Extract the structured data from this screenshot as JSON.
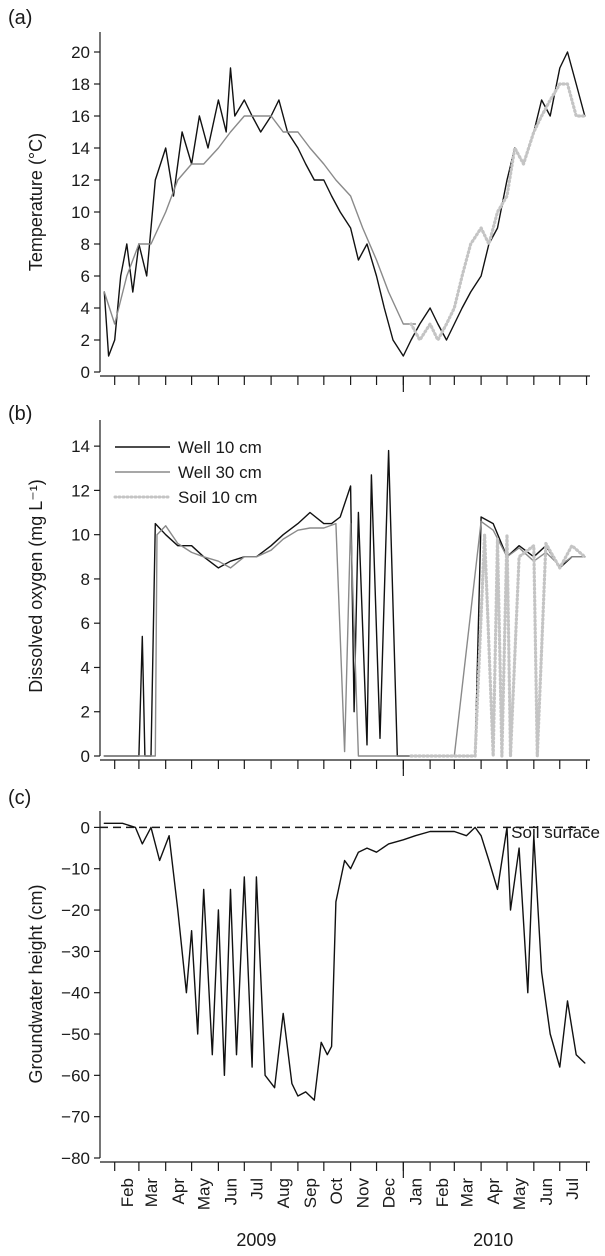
{
  "colors": {
    "well10": "#111111",
    "well30": "#8a8a8a",
    "soil10": "#c4c4c4",
    "axis": "#1a1a1a"
  },
  "chart_data": [
    {
      "type": "line",
      "panel": "(a)",
      "ylabel": "Temperature (°C)",
      "ylim": [
        0,
        21
      ],
      "yticks": [
        0,
        2,
        4,
        6,
        8,
        10,
        12,
        14,
        16,
        18,
        20
      ],
      "series": [
        {
          "name": "Well 10 cm",
          "style": "solid-black",
          "x": [
            "2009-01-20",
            "2009-01-25",
            "2009-02-01",
            "2009-02-08",
            "2009-02-15",
            "2009-02-22",
            "2009-03-01",
            "2009-03-10",
            "2009-03-20",
            "2009-04-01",
            "2009-04-10",
            "2009-04-20",
            "2009-05-01",
            "2009-05-10",
            "2009-05-20",
            "2009-06-01",
            "2009-06-10",
            "2009-06-15",
            "2009-06-20",
            "2009-07-01",
            "2009-07-10",
            "2009-07-20",
            "2009-08-01",
            "2009-08-10",
            "2009-08-20",
            "2009-09-01",
            "2009-09-10",
            "2009-09-20",
            "2009-10-01",
            "2009-10-10",
            "2009-10-20",
            "2009-11-01",
            "2009-11-10",
            "2009-11-20",
            "2009-12-01",
            "2009-12-10",
            "2009-12-20",
            "2010-01-01",
            "2010-01-10",
            "2010-01-20",
            "2010-02-01",
            "2010-02-10",
            "2010-02-20",
            "2010-03-01",
            "2010-03-10",
            "2010-03-20",
            "2010-04-01",
            "2010-04-10",
            "2010-04-20",
            "2010-05-01",
            "2010-05-10",
            "2010-05-20",
            "2010-06-01",
            "2010-06-10",
            "2010-06-20",
            "2010-07-01",
            "2010-07-10",
            "2010-07-20",
            "2010-07-30"
          ],
          "y": [
            5,
            1,
            2,
            6,
            8,
            5,
            8,
            6,
            12,
            14,
            11,
            15,
            13,
            16,
            14,
            17,
            15,
            19,
            16,
            17,
            16,
            15,
            16,
            17,
            15,
            14,
            13,
            12,
            12,
            11,
            10,
            9,
            7,
            8,
            6,
            4,
            2,
            1,
            2,
            3,
            4,
            3,
            2,
            3,
            4,
            5,
            6,
            8,
            9,
            12,
            14,
            13,
            15,
            17,
            16,
            19,
            20,
            18,
            16
          ]
        },
        {
          "name": "Well 30 cm",
          "style": "solid-gray",
          "x": [
            "2009-01-20",
            "2009-02-01",
            "2009-02-15",
            "2009-03-01",
            "2009-03-15",
            "2009-04-01",
            "2009-04-15",
            "2009-05-01",
            "2009-05-15",
            "2009-06-01",
            "2009-06-15",
            "2009-07-01",
            "2009-07-15",
            "2009-08-01",
            "2009-08-15",
            "2009-09-01",
            "2009-09-15",
            "2009-10-01",
            "2009-10-15",
            "2009-11-01",
            "2009-11-15",
            "2009-12-01",
            "2009-12-15",
            "2010-01-01",
            "2010-01-15"
          ],
          "y": [
            5,
            3,
            6,
            8,
            8,
            10,
            12,
            13,
            13,
            14,
            15,
            16,
            16,
            16,
            15,
            15,
            14,
            13,
            12,
            11,
            9,
            7,
            5,
            3,
            3
          ]
        },
        {
          "name": "Soil 10 cm",
          "style": "dotted-lightgray",
          "x": [
            "2010-01-10",
            "2010-01-20",
            "2010-02-01",
            "2010-02-10",
            "2010-02-20",
            "2010-03-01",
            "2010-03-10",
            "2010-03-20",
            "2010-04-01",
            "2010-04-10",
            "2010-04-20",
            "2010-05-01",
            "2010-05-10",
            "2010-05-20",
            "2010-06-01",
            "2010-06-10",
            "2010-06-20",
            "2010-07-01",
            "2010-07-10",
            "2010-07-20",
            "2010-07-30"
          ],
          "y": [
            3,
            2,
            3,
            2,
            3,
            4,
            6,
            8,
            9,
            8,
            10,
            11,
            14,
            13,
            15,
            16,
            17,
            18,
            18,
            16,
            16
          ]
        }
      ]
    },
    {
      "type": "line",
      "panel": "(b)",
      "ylabel": "Dissolved oxygen (mg L⁻¹)",
      "ylim": [
        0,
        15
      ],
      "yticks": [
        0,
        2,
        4,
        6,
        8,
        10,
        12,
        14
      ],
      "legend": {
        "position": "top-left",
        "entries": [
          "Well 10 cm",
          "Well 30 cm",
          "Soil 10 cm"
        ]
      },
      "series": [
        {
          "name": "Well 10 cm",
          "style": "solid-black",
          "x": [
            "2009-01-20",
            "2009-03-01",
            "2009-03-05",
            "2009-03-08",
            "2009-03-15",
            "2009-03-20",
            "2009-04-01",
            "2009-04-15",
            "2009-05-01",
            "2009-05-15",
            "2009-06-01",
            "2009-06-15",
            "2009-07-01",
            "2009-07-15",
            "2009-08-01",
            "2009-08-15",
            "2009-09-01",
            "2009-09-15",
            "2009-10-01",
            "2009-10-10",
            "2009-10-20",
            "2009-11-01",
            "2009-11-05",
            "2009-11-10",
            "2009-11-20",
            "2009-11-25",
            "2009-12-05",
            "2009-12-15",
            "2009-12-25",
            "2010-01-01",
            "2010-01-05",
            "2010-01-10",
            "2010-01-15",
            "2010-02-01",
            "2010-03-01",
            "2010-03-15",
            "2010-03-25",
            "2010-04-01",
            "2010-04-15",
            "2010-05-01",
            "2010-05-15",
            "2010-06-01",
            "2010-06-15",
            "2010-07-01",
            "2010-07-15",
            "2010-07-30"
          ],
          "y": [
            0,
            0,
            5.4,
            0,
            0,
            10.5,
            10,
            9.5,
            9.5,
            9,
            8.5,
            8.8,
            9,
            9,
            9.5,
            10,
            10.5,
            11,
            10.5,
            10.5,
            10.8,
            12.2,
            2,
            11,
            0.5,
            12.7,
            0.8,
            13.8,
            0,
            0,
            0,
            0,
            0,
            0,
            0,
            0,
            0,
            10.8,
            10.5,
            9,
            9.5,
            9,
            9.5,
            8.5,
            9,
            9
          ]
        },
        {
          "name": "Well 30 cm",
          "style": "solid-gray",
          "x": [
            "2009-01-20",
            "2009-03-20",
            "2009-03-22",
            "2009-04-01",
            "2009-04-15",
            "2009-05-01",
            "2009-05-15",
            "2009-06-01",
            "2009-06-15",
            "2009-07-01",
            "2009-07-15",
            "2009-08-01",
            "2009-08-15",
            "2009-09-01",
            "2009-09-15",
            "2009-10-01",
            "2009-10-15",
            "2009-10-25",
            "2009-11-01",
            "2009-11-10",
            "2009-12-01",
            "2010-01-01",
            "2010-02-01",
            "2010-03-01",
            "2010-04-01",
            "2010-04-15",
            "2010-05-01",
            "2010-05-15",
            "2010-06-01",
            "2010-06-15",
            "2010-07-01",
            "2010-07-15",
            "2010-07-30"
          ],
          "y": [
            0,
            0,
            10,
            10.4,
            9.6,
            9.2,
            9,
            8.8,
            8.5,
            9,
            9,
            9.3,
            9.8,
            10.2,
            10.3,
            10.3,
            10.5,
            0.2,
            10.5,
            0,
            0,
            0,
            0,
            0,
            10.6,
            10.2,
            9,
            9.4,
            8.8,
            9.2,
            8.6,
            9,
            9
          ]
        },
        {
          "name": "Soil 10 cm",
          "style": "dotted-lightgray",
          "x": [
            "2010-01-10",
            "2010-02-01",
            "2010-03-01",
            "2010-03-25",
            "2010-04-05",
            "2010-04-15",
            "2010-04-20",
            "2010-04-25",
            "2010-05-01",
            "2010-05-05",
            "2010-05-15",
            "2010-06-01",
            "2010-06-05",
            "2010-06-15",
            "2010-07-01",
            "2010-07-15",
            "2010-07-30"
          ],
          "y": [
            0,
            0,
            0,
            0,
            10,
            0,
            9.8,
            0,
            10,
            0,
            9,
            9.5,
            0,
            9.6,
            8.5,
            9.5,
            9
          ]
        }
      ]
    },
    {
      "type": "line",
      "panel": "(c)",
      "ylabel": "Groundwater height (cm)",
      "ylim": [
        -80,
        3
      ],
      "yticks": [
        0,
        -10,
        -20,
        -30,
        -40,
        -50,
        -60,
        -70,
        -80
      ],
      "annotation": "Soil surface",
      "reference_line": {
        "y": 0,
        "style": "dashed"
      },
      "series": [
        {
          "name": "",
          "style": "solid-black",
          "x": [
            "2009-01-20",
            "2009-02-10",
            "2009-02-25",
            "2009-03-05",
            "2009-03-15",
            "2009-03-25",
            "2009-04-05",
            "2009-04-15",
            "2009-04-25",
            "2009-05-01",
            "2009-05-08",
            "2009-05-15",
            "2009-05-25",
            "2009-06-01",
            "2009-06-08",
            "2009-06-15",
            "2009-06-22",
            "2009-07-01",
            "2009-07-10",
            "2009-07-15",
            "2009-07-25",
            "2009-08-05",
            "2009-08-15",
            "2009-08-25",
            "2009-09-01",
            "2009-09-10",
            "2009-09-20",
            "2009-09-28",
            "2009-10-05",
            "2009-10-10",
            "2009-10-15",
            "2009-10-25",
            "2009-11-01",
            "2009-11-10",
            "2009-11-20",
            "2009-12-01",
            "2009-12-15",
            "2010-01-01",
            "2010-01-15",
            "2010-02-01",
            "2010-02-15",
            "2010-03-01",
            "2010-03-15",
            "2010-03-25",
            "2010-04-01",
            "2010-04-10",
            "2010-04-20",
            "2010-05-01",
            "2010-05-05",
            "2010-05-15",
            "2010-05-25",
            "2010-06-01",
            "2010-06-10",
            "2010-06-20",
            "2010-07-01",
            "2010-07-10",
            "2010-07-20",
            "2010-07-30"
          ],
          "y": [
            1,
            1,
            0,
            -4,
            0,
            -8,
            -2,
            -20,
            -40,
            -25,
            -50,
            -15,
            -55,
            -20,
            -60,
            -15,
            -55,
            -12,
            -58,
            -12,
            -60,
            -63,
            -45,
            -62,
            -65,
            -64,
            -66,
            -52,
            -55,
            -53,
            -18,
            -8,
            -10,
            -6,
            -5,
            -6,
            -4,
            -3,
            -2,
            -1,
            -1,
            -1,
            -2,
            0,
            -2,
            -8,
            -15,
            0,
            -20,
            -5,
            -40,
            -2,
            -35,
            -50,
            -58,
            -42,
            -55,
            -57
          ]
        }
      ]
    }
  ],
  "panel_labels": [
    "(a)",
    "(b)",
    "(c)"
  ],
  "x_axis": {
    "start": "2009-01-15",
    "end": "2010-08-05",
    "month_labels": [
      "Feb",
      "Mar",
      "Apr",
      "May",
      "Jun",
      "Jul",
      "Aug",
      "Sep",
      "Oct",
      "Nov",
      "Dec",
      "Jan",
      "Feb",
      "Mar",
      "Apr",
      "May",
      "Jun",
      "Jul"
    ],
    "month_dates": [
      "2009-02-15",
      "2009-03-15",
      "2009-04-15",
      "2009-05-15",
      "2009-06-15",
      "2009-07-15",
      "2009-08-15",
      "2009-09-15",
      "2009-10-15",
      "2009-11-15",
      "2009-12-15",
      "2010-01-15",
      "2010-02-15",
      "2010-03-15",
      "2010-04-15",
      "2010-05-15",
      "2010-06-15",
      "2010-07-15"
    ],
    "year_labels": [
      "2009",
      "2010"
    ],
    "year_label_dates": [
      "2009-07-15",
      "2010-04-15"
    ],
    "year_divider": "2010-01-01"
  }
}
